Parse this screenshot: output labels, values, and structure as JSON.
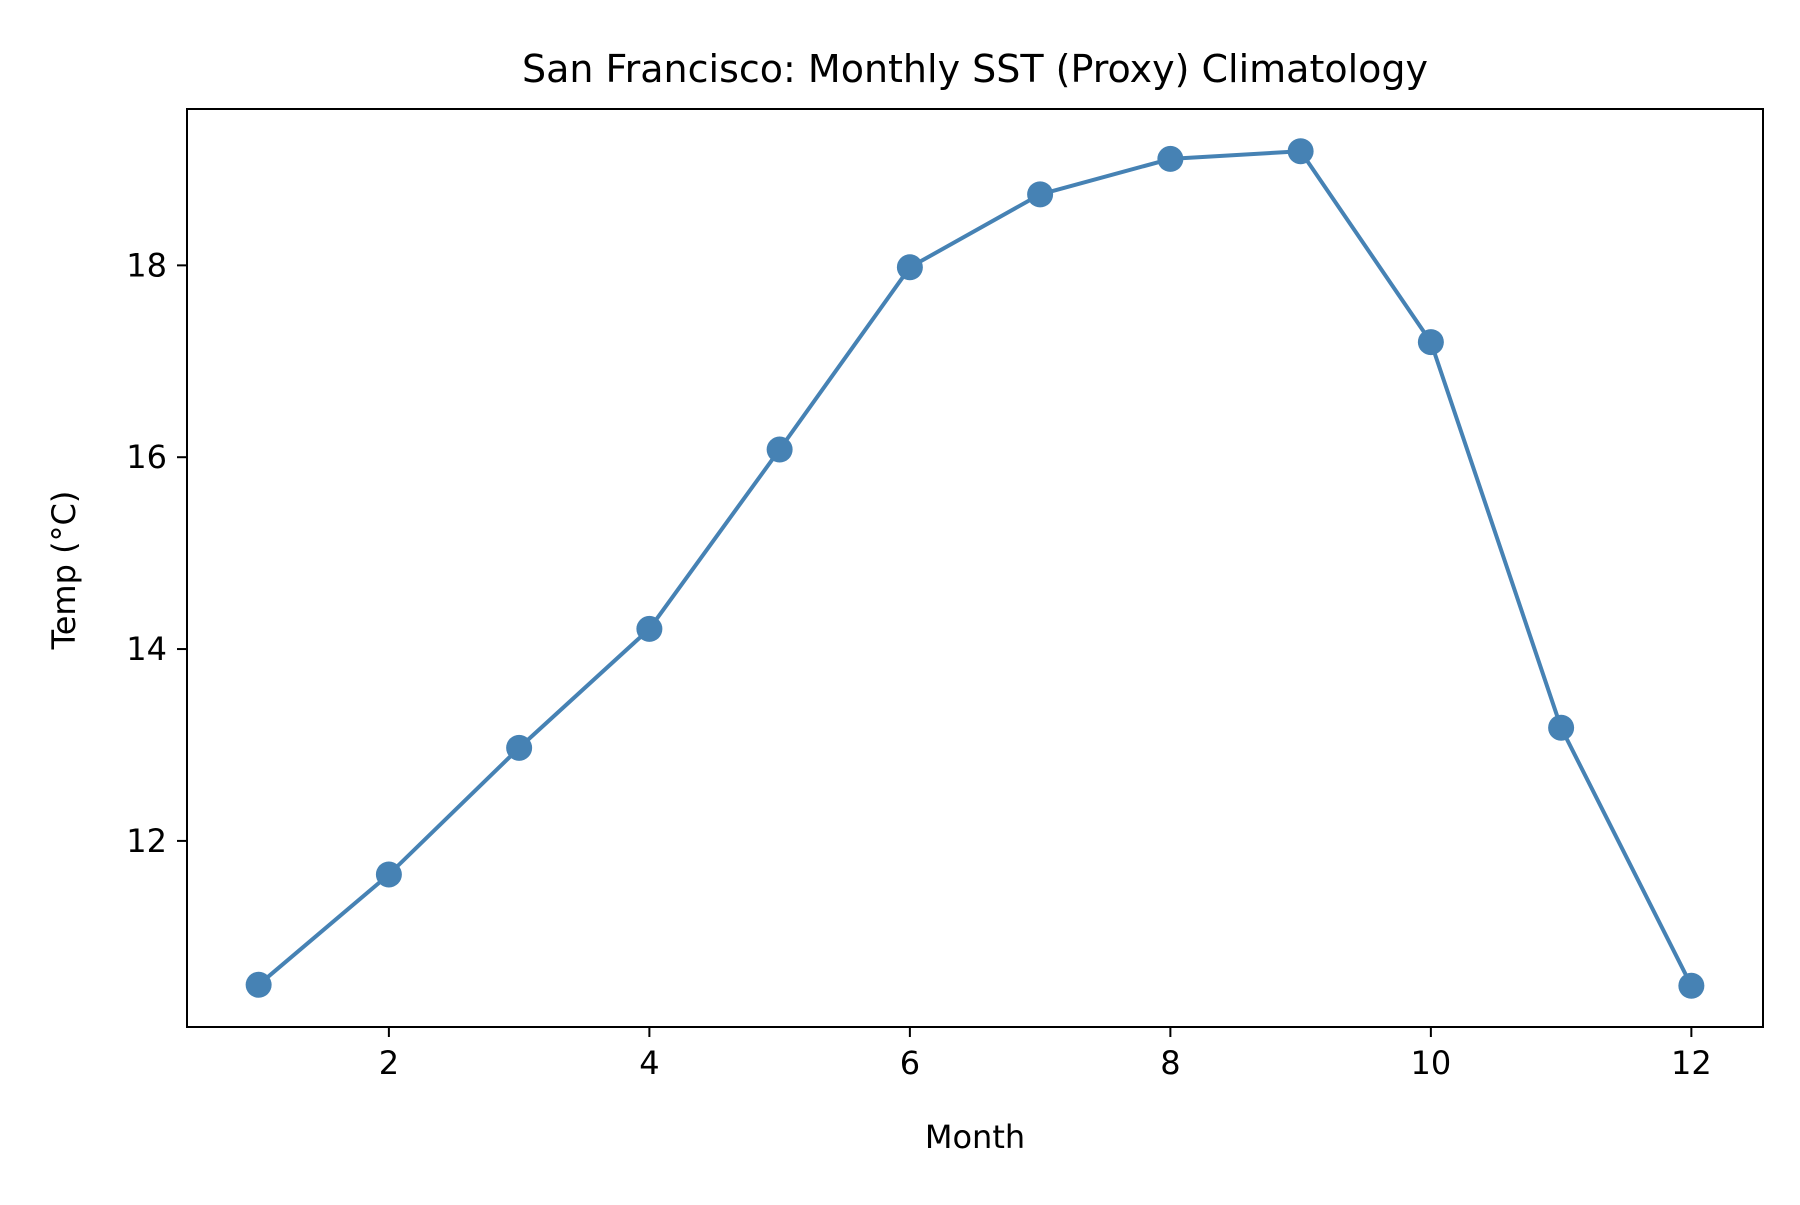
{
  "chart_data": {
    "type": "line",
    "title": "San Francisco: Monthly SST (Proxy) Climatology",
    "xlabel": "Month",
    "ylabel": "Temp (°C)",
    "x": [
      1,
      2,
      3,
      4,
      5,
      6,
      7,
      8,
      9,
      10,
      11,
      12
    ],
    "series": [
      {
        "values": [
          10.5,
          11.65,
          12.97,
          14.21,
          16.08,
          17.98,
          18.74,
          19.11,
          19.19,
          17.2,
          13.18,
          10.49
        ],
        "color": "#4682b4",
        "marker": "circle"
      }
    ],
    "xlim": [
      0.45,
      12.55
    ],
    "ylim": [
      10.06,
      19.63
    ],
    "xticks": [
      2,
      4,
      6,
      8,
      10,
      12
    ],
    "yticks": [
      12,
      14,
      16,
      18
    ],
    "grid": false
  }
}
